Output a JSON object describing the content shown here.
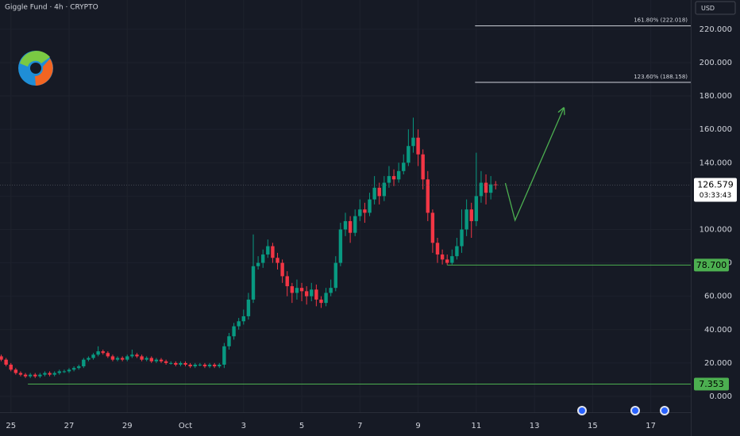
{
  "chart_data": {
    "type": "candlestick",
    "title": "Giggle Fund · 4h · CRYPTO",
    "currency": "USD",
    "x": [
      -8,
      -4,
      0,
      4,
      8,
      12,
      16,
      20,
      24,
      28,
      32,
      36,
      40,
      44,
      48,
      52,
      56,
      60,
      64,
      68,
      72,
      76,
      80,
      84,
      88,
      92,
      96,
      100,
      104,
      108,
      112,
      116,
      120,
      124,
      128,
      132,
      136,
      140,
      144,
      148,
      152,
      156,
      160,
      164,
      168,
      172,
      176,
      180,
      184,
      188,
      192,
      196,
      200,
      204,
      208,
      212,
      216,
      220,
      224,
      228,
      232,
      236,
      240,
      244,
      248,
      252,
      256,
      260,
      264,
      268,
      272,
      276,
      280,
      284,
      288,
      292,
      296,
      300,
      304,
      308,
      312,
      316,
      320,
      324,
      328,
      332,
      336,
      340,
      344,
      348,
      352,
      356,
      360,
      364,
      368,
      372,
      376,
      380,
      384,
      388,
      392,
      396,
      400
    ],
    "open": [
      24,
      22,
      19,
      16,
      14,
      13,
      12,
      13,
      12,
      13,
      14,
      13,
      14,
      15,
      15,
      16,
      17,
      18,
      22,
      23,
      25,
      27,
      26,
      24,
      22,
      23,
      22,
      24,
      25,
      24,
      22,
      23,
      21,
      22,
      21,
      20,
      20,
      19,
      20,
      19,
      18,
      19,
      19,
      18,
      19,
      18,
      19,
      30,
      36,
      42,
      45,
      48,
      58,
      78,
      80,
      85,
      90,
      83,
      80,
      72,
      66,
      62,
      65,
      63,
      60,
      64,
      58,
      56,
      62,
      65,
      80,
      100,
      105,
      98,
      108,
      112,
      110,
      118,
      125,
      120,
      128,
      132,
      130,
      135,
      140,
      150,
      155,
      145,
      130,
      110,
      92,
      85,
      82,
      80,
      84,
      90,
      100,
      112,
      105,
      120,
      128,
      122,
      127
    ],
    "high": [
      25,
      23,
      20,
      17,
      15,
      14,
      14,
      14,
      14,
      15,
      15,
      15,
      16,
      16,
      17,
      18,
      19,
      23,
      24,
      26,
      30,
      28,
      27,
      25,
      24,
      24,
      25,
      28,
      26,
      25,
      24,
      24,
      23,
      23,
      22,
      21,
      21,
      21,
      21,
      20,
      20,
      20,
      20,
      20,
      20,
      20,
      32,
      38,
      44,
      47,
      52,
      62,
      97,
      84,
      88,
      94,
      92,
      86,
      82,
      75,
      68,
      70,
      68,
      66,
      68,
      67,
      60,
      65,
      70,
      84,
      104,
      110,
      108,
      112,
      118,
      116,
      122,
      132,
      128,
      132,
      138,
      136,
      140,
      145,
      160,
      167,
      160,
      148,
      135,
      112,
      95,
      88,
      85,
      88,
      95,
      112,
      118,
      116,
      146,
      135,
      133,
      132,
      129
    ],
    "low": [
      21,
      18,
      15,
      13,
      12,
      11,
      11,
      11,
      11,
      12,
      12,
      12,
      13,
      14,
      14,
      15,
      16,
      17,
      21,
      22,
      24,
      25,
      23,
      21,
      21,
      21,
      21,
      23,
      23,
      21,
      21,
      20,
      20,
      20,
      19,
      19,
      18,
      18,
      18,
      17,
      17,
      18,
      17,
      17,
      17,
      17,
      17,
      28,
      34,
      40,
      43,
      46,
      56,
      76,
      77,
      83,
      80,
      76,
      68,
      60,
      56,
      58,
      57,
      55,
      57,
      54,
      53,
      54,
      60,
      63,
      78,
      96,
      92,
      96,
      105,
      104,
      108,
      115,
      115,
      117,
      125,
      126,
      128,
      133,
      138,
      146,
      138,
      124,
      105,
      86,
      80,
      79,
      78.7,
      79,
      82,
      86,
      96,
      95,
      102,
      116,
      115,
      118,
      124
    ],
    "close": [
      22,
      19,
      16,
      14,
      13,
      12,
      13,
      12,
      13,
      14,
      13,
      14,
      15,
      15,
      16,
      17,
      18,
      22,
      23,
      25,
      27,
      26,
      24,
      22,
      23,
      22,
      24,
      25,
      24,
      22,
      23,
      21,
      22,
      21,
      20,
      20,
      19,
      20,
      19,
      18,
      19,
      19,
      18,
      19,
      18,
      19,
      30,
      36,
      42,
      45,
      48,
      58,
      78,
      80,
      85,
      90,
      83,
      80,
      72,
      66,
      62,
      65,
      63,
      60,
      64,
      58,
      56,
      62,
      65,
      80,
      100,
      105,
      98,
      108,
      112,
      110,
      118,
      125,
      120,
      128,
      132,
      130,
      135,
      140,
      150,
      155,
      145,
      130,
      110,
      92,
      85,
      82,
      80,
      84,
      90,
      100,
      112,
      105,
      120,
      128,
      122,
      127,
      126.579
    ],
    "countdown": "03:33:43",
    "up_color": "#089981",
    "down_color": "#f23645",
    "xlim": [
      -9,
      561
    ],
    "xticks": [
      {
        "value": 0,
        "label": "25"
      },
      {
        "value": 48,
        "label": "27"
      },
      {
        "value": 96,
        "label": "29"
      },
      {
        "value": 144,
        "label": "Oct"
      },
      {
        "value": 192,
        "label": "3"
      },
      {
        "value": 240,
        "label": "5"
      },
      {
        "value": 288,
        "label": "7"
      },
      {
        "value": 336,
        "label": "9"
      },
      {
        "value": 384,
        "label": "11"
      },
      {
        "value": 432,
        "label": "13"
      },
      {
        "value": 480,
        "label": "15"
      },
      {
        "value": 528,
        "label": "17"
      }
    ],
    "ylim": [
      -9.5,
      237.5
    ],
    "yticks": [
      {
        "value": 0,
        "label": "0.000"
      },
      {
        "value": 20,
        "label": "20.000"
      },
      {
        "value": 40,
        "label": "40.000"
      },
      {
        "value": 60,
        "label": "60.000"
      },
      {
        "value": 80,
        "label": "80.000"
      },
      {
        "value": 100,
        "label": "100.000"
      },
      {
        "value": 120,
        "label": "120.000"
      },
      {
        "value": 140,
        "label": "140.000"
      },
      {
        "value": 160,
        "label": "160.000"
      },
      {
        "value": 180,
        "label": "180.000"
      },
      {
        "value": 200,
        "label": "200.000"
      },
      {
        "value": 220,
        "label": "220.000"
      }
    ],
    "grid": true,
    "levels": [
      {
        "value": 222.018,
        "label": "161.80% (222.018)",
        "start": 383,
        "color": "#d1d4dc",
        "label_place": "above"
      },
      {
        "value": 188.158,
        "label": "123.60% (188.158)",
        "start": 383,
        "color": "#d1d4dc",
        "label_place": "above"
      },
      {
        "value": 78.7,
        "label": "78.700",
        "start": 360,
        "color": "#4caf50",
        "label_place": "axis"
      },
      {
        "value": 7.353,
        "label": "7.353",
        "start": 14,
        "color": "#4caf50",
        "label_place": "axis"
      }
    ],
    "projection": {
      "x": [
        408,
        416,
        456
      ],
      "y": [
        127.8,
        105.5,
        172.4
      ],
      "color": "#4caf50"
    }
  }
}
